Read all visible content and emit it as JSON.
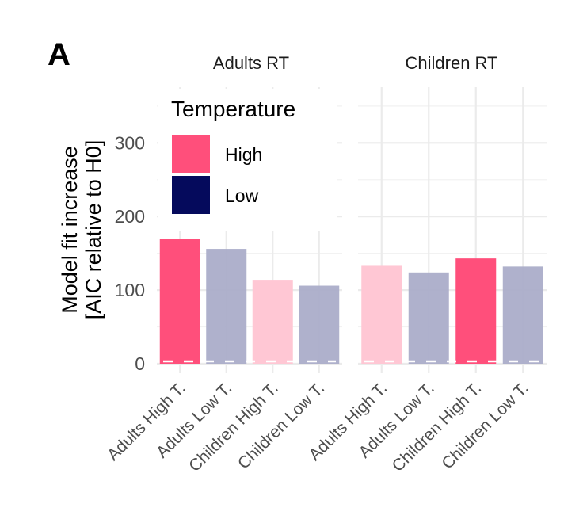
{
  "chart_data": {
    "type": "bar",
    "panel_tag": "A",
    "title": "",
    "ylabel_line1": "Model fit increase",
    "ylabel_line2": "[AIC relative to H0]",
    "xlabel": "",
    "ylim": [
      0,
      350
    ],
    "yticks": [
      0,
      100,
      200,
      300
    ],
    "ytick_labels": [
      "0",
      "100",
      "200",
      "300"
    ],
    "grid": true,
    "reference_line": {
      "y": 0,
      "style": "dashed",
      "color": "#ffffff"
    },
    "categories": [
      "Adults High T.",
      "Adults Low T.",
      "Children High T.",
      "Children Low T."
    ],
    "legend": {
      "title": "Temperature",
      "placement": "top-left",
      "entries": [
        {
          "label": "High",
          "color": "#FF4F7B"
        },
        {
          "label": "Low",
          "color": "#050A5C"
        }
      ]
    },
    "panels": [
      {
        "strip": "Adults RT",
        "values": [
          169,
          156,
          114,
          106
        ],
        "temperature": [
          "High",
          "Low",
          "High",
          "Low"
        ],
        "highlighted": [
          true,
          false,
          false,
          false
        ]
      },
      {
        "strip": "Children RT",
        "values": [
          133,
          124,
          143,
          132
        ],
        "temperature": [
          "High",
          "Low",
          "High",
          "Low"
        ],
        "highlighted": [
          false,
          false,
          true,
          false
        ]
      }
    ],
    "colors": {
      "high_full": "#FF4F7B",
      "high_faded": "#FFC7D4",
      "low_faded": "#ABADC9"
    }
  }
}
